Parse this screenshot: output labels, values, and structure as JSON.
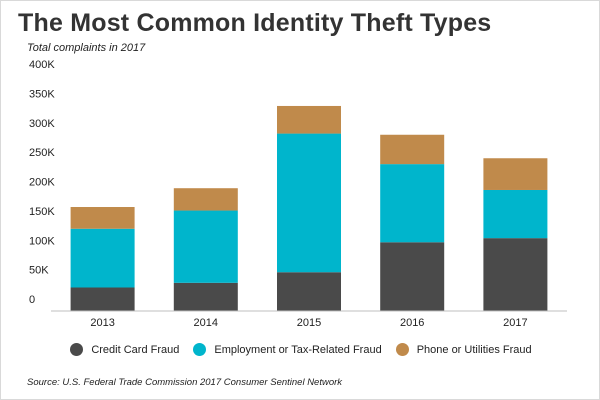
{
  "title": "The Most Common Identity Theft Types",
  "subtitle": "Total complaints in 2017",
  "source": "Source: U.S. Federal Trade Commission 2017 Consumer Sentinel Network",
  "chart_data": {
    "type": "bar",
    "stacked": true,
    "categories": [
      "2013",
      "2014",
      "2015",
      "2016",
      "2017"
    ],
    "series": [
      {
        "name": "Credit Card Fraud",
        "color": "#4a4a4a",
        "values": [
          40000,
          48000,
          66000,
          117000,
          124000
        ]
      },
      {
        "name": "Employment or Tax-Related Fraud",
        "color": "#00b5cc",
        "values": [
          100000,
          123000,
          236000,
          133000,
          82000
        ]
      },
      {
        "name": "Phone or Utilities Fraud",
        "color": "#c08a4b",
        "values": [
          37000,
          38000,
          47000,
          50000,
          54000
        ]
      }
    ],
    "ylim": [
      0,
      400000
    ],
    "yticks": [
      0,
      50000,
      100000,
      150000,
      200000,
      250000,
      300000,
      350000,
      400000
    ],
    "ytick_labels": [
      "0",
      "50K",
      "100K",
      "150K",
      "200K",
      "250K",
      "300K",
      "350K",
      "400K"
    ],
    "grid": false,
    "legend_position": "bottom"
  }
}
